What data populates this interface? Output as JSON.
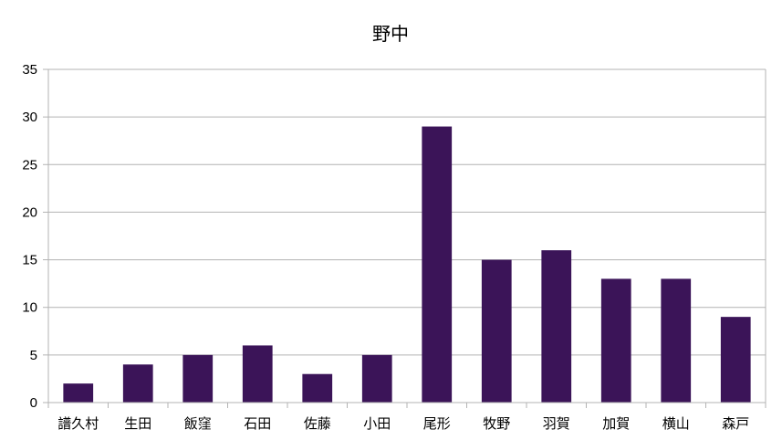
{
  "chart_data": {
    "type": "bar",
    "title": "野中",
    "xlabel": "",
    "ylabel": "",
    "categories": [
      "譜久村",
      "生田",
      "飯窪",
      "石田",
      "佐藤",
      "小田",
      "尾形",
      "牧野",
      "羽賀",
      "加賀",
      "横山",
      "森戸"
    ],
    "values": [
      2,
      4,
      5,
      6,
      3,
      5,
      29,
      15,
      16,
      13,
      13,
      9
    ],
    "ylim": [
      0,
      35
    ],
    "yticks": [
      "0",
      "5",
      "10",
      "15",
      "20",
      "25",
      "30",
      "35"
    ],
    "grid": true,
    "legend": "none",
    "colors": {
      "bar": "#3b1458",
      "grid": "#b3b3b3",
      "axis": "#b3b3b3"
    }
  }
}
